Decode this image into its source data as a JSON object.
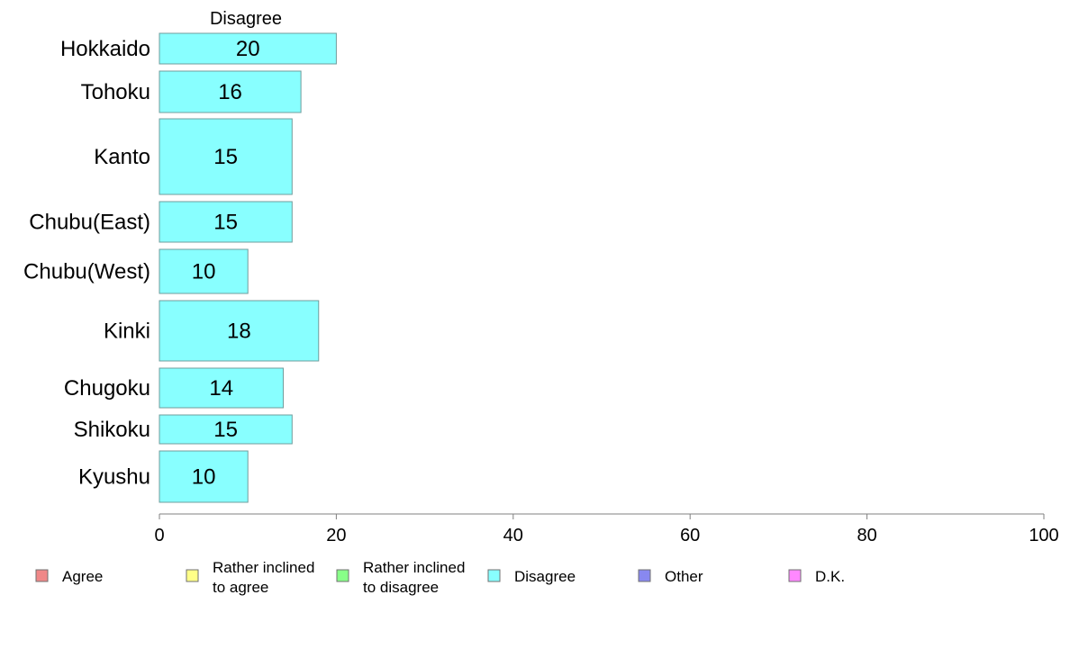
{
  "chart_data": {
    "type": "bar",
    "orientation": "horizontal",
    "series_header": "Disagree",
    "categories": [
      "Hokkaido",
      "Tohoku",
      "Kanto",
      "Chubu(East)",
      "Chubu(West)",
      "Kinki",
      "Chugoku",
      "Shikoku",
      "Kyushu"
    ],
    "values": [
      20,
      16,
      15,
      15,
      10,
      18,
      14,
      15,
      10
    ],
    "value_labels": [
      "20",
      "16",
      "15",
      "15",
      "10",
      "18",
      "14",
      "15",
      "10"
    ],
    "bar_color": "#88ffff",
    "xlim": [
      0,
      100
    ],
    "x_ticks": [
      0,
      20,
      40,
      60,
      80,
      100
    ],
    "grid": false,
    "legend_position": "bottom",
    "legend": [
      {
        "lines": [
          "Agree"
        ],
        "color": "#f08888"
      },
      {
        "lines": [
          "Rather inclined",
          "to agree"
        ],
        "color": "#ffff88"
      },
      {
        "lines": [
          "Rather inclined",
          "to disagree"
        ],
        "color": "#88ff88"
      },
      {
        "lines": [
          "Disagree"
        ],
        "color": "#88ffff"
      },
      {
        "lines": [
          "Other"
        ],
        "color": "#8888f0"
      },
      {
        "lines": [
          "D.K."
        ],
        "color": "#ff88ff"
      }
    ]
  }
}
